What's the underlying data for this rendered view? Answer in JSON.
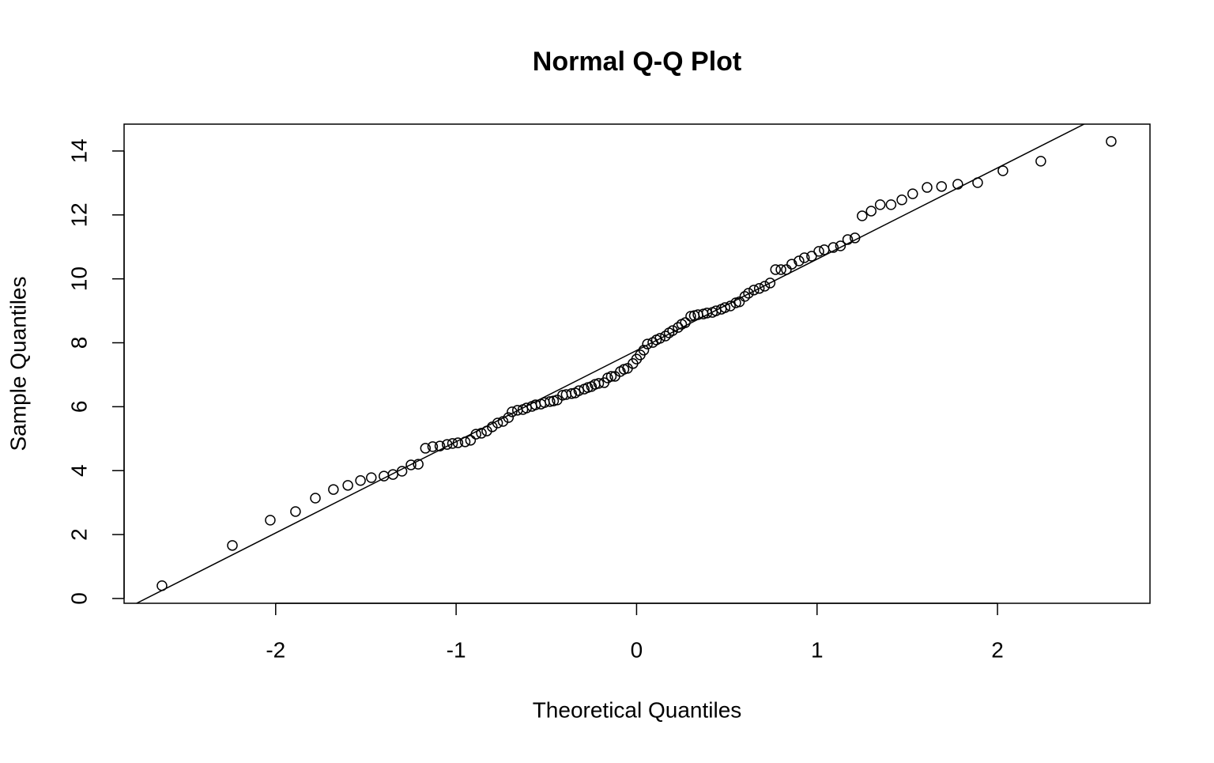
{
  "chart_data": {
    "type": "scatter",
    "title": "Normal Q-Q Plot",
    "x_label": "Theoretical Quantiles",
    "y_label": "Sample Quantiles",
    "color": "#000000",
    "xlim": [
      -2.84,
      2.845
    ],
    "ylim": [
      -0.15,
      14.84
    ],
    "xticks": [
      -2,
      -1,
      0,
      1,
      2
    ],
    "yticks": [
      0,
      2,
      4,
      6,
      8,
      10,
      12,
      14
    ],
    "line": {
      "intercept": 7.76,
      "slope": 2.855
    },
    "x": [
      -2.63,
      -2.24,
      -2.03,
      -1.89,
      -1.78,
      -1.68,
      -1.6,
      -1.53,
      -1.47,
      -1.4,
      -1.35,
      -1.3,
      -1.25,
      -1.21,
      -1.17,
      -1.13,
      -1.09,
      -1.05,
      -1.02,
      -0.99,
      -0.95,
      -0.92,
      -0.89,
      -0.86,
      -0.83,
      -0.8,
      -0.77,
      -0.74,
      -0.71,
      -0.69,
      -0.66,
      -0.63,
      -0.61,
      -0.58,
      -0.56,
      -0.53,
      -0.51,
      -0.48,
      -0.46,
      -0.44,
      -0.41,
      -0.39,
      -0.36,
      -0.34,
      -0.32,
      -0.29,
      -0.27,
      -0.25,
      -0.23,
      -0.21,
      -0.18,
      -0.16,
      -0.14,
      -0.12,
      -0.09,
      -0.07,
      -0.05,
      -0.02,
      0,
      0.02,
      0.04,
      0.06,
      0.09,
      0.11,
      0.13,
      0.16,
      0.18,
      0.2,
      0.23,
      0.25,
      0.27,
      0.3,
      0.32,
      0.34,
      0.37,
      0.39,
      0.42,
      0.44,
      0.47,
      0.49,
      0.52,
      0.55,
      0.57,
      0.6,
      0.62,
      0.65,
      0.68,
      0.71,
      0.74,
      0.77,
      0.8,
      0.83,
      0.86,
      0.9,
      0.93,
      0.97,
      1.01,
      1.04,
      1.09,
      1.13,
      1.17,
      1.21,
      1.25,
      1.3,
      1.35,
      1.41,
      1.47,
      1.53,
      1.61,
      1.69,
      1.78,
      1.89,
      2.03,
      2.24,
      2.63
    ],
    "values": [
      0.4,
      1.66,
      2.45,
      2.72,
      3.14,
      3.41,
      3.54,
      3.69,
      3.78,
      3.83,
      3.88,
      3.98,
      4.18,
      4.2,
      4.7,
      4.75,
      4.77,
      4.82,
      4.85,
      4.87,
      4.9,
      4.95,
      5.14,
      5.17,
      5.24,
      5.37,
      5.49,
      5.54,
      5.66,
      5.84,
      5.89,
      5.91,
      5.96,
      6.01,
      6.06,
      6.08,
      6.13,
      6.16,
      6.18,
      6.21,
      6.36,
      6.38,
      6.41,
      6.43,
      6.5,
      6.55,
      6.6,
      6.63,
      6.7,
      6.73,
      6.75,
      6.9,
      6.95,
      6.95,
      7.1,
      7.17,
      7.2,
      7.35,
      7.49,
      7.62,
      7.77,
      7.96,
      8.01,
      8.09,
      8.14,
      8.21,
      8.31,
      8.38,
      8.48,
      8.58,
      8.63,
      8.83,
      8.85,
      8.88,
      8.9,
      8.93,
      8.95,
      9.0,
      9.05,
      9.1,
      9.15,
      9.25,
      9.28,
      9.45,
      9.55,
      9.65,
      9.7,
      9.77,
      9.87,
      10.29,
      10.29,
      10.29,
      10.46,
      10.56,
      10.66,
      10.71,
      10.86,
      10.91,
      10.98,
      11.03,
      11.23,
      11.28,
      11.97,
      12.12,
      12.32,
      12.32,
      12.47,
      12.66,
      12.86,
      12.89,
      12.96,
      13.01,
      13.38,
      13.68,
      14.3
    ]
  }
}
